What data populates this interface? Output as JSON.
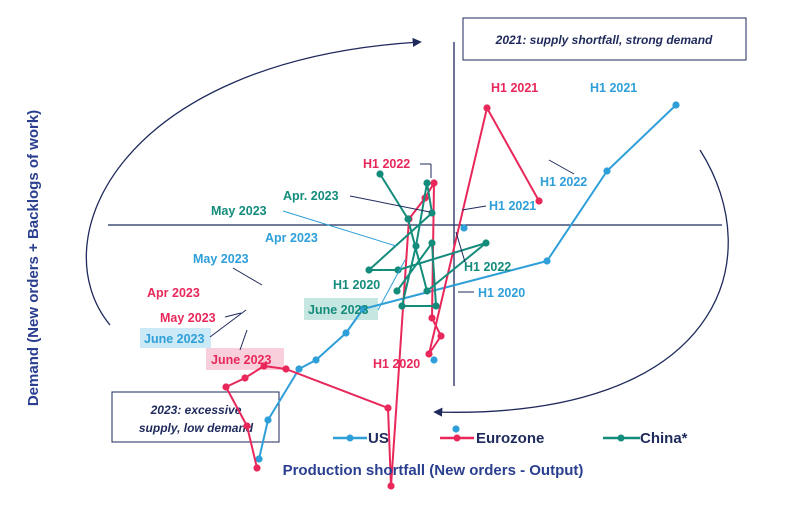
{
  "chart_data": {
    "type": "scatter",
    "xlabel": "Production shortfall (New orders - Output)",
    "ylabel": "Demand (New orders + Backlogs of work)",
    "quadrant_notes": {
      "top_right": "2021: supply shortfall, strong demand",
      "bottom_left_line1": "2023: excessive",
      "bottom_left_line2": "supply, low demand"
    },
    "legend_position": "bottom",
    "grid": false,
    "series": [
      {
        "name": "US",
        "color": "#2e9fd8",
        "points": [
          {
            "x": 222,
            "y": 0.4,
            "label": "H1 2021"
          },
          {
            "x": 153,
            "y": 0.18
          },
          {
            "x": 93,
            "y": -0.12,
            "label": "H1 2022"
          },
          {
            "x": -91,
            "y": -0.28,
            "label": "Apr 2023"
          },
          {
            "x": -108,
            "y": -0.36
          },
          {
            "x": -138,
            "y": -0.45
          },
          {
            "x": -155,
            "y": -0.48
          },
          {
            "x": -186,
            "y": -0.65,
            "label": "May 2023"
          },
          {
            "x": -195,
            "y": -0.78,
            "label": "June 2023"
          }
        ],
        "extra_points": [
          {
            "x": 10,
            "y": -0.01,
            "label": "H1 2021"
          },
          {
            "x": 2,
            "y": -0.68,
            "label": "H1 2020"
          },
          {
            "x": -20,
            "y": -0.45
          }
        ]
      },
      {
        "name": "Eurozone",
        "color": "#e8285a",
        "points": [
          {
            "x": 85,
            "y": 0.08
          },
          {
            "x": 33,
            "y": 0.39,
            "label": "H1 2021"
          },
          {
            "x": -25,
            "y": -0.43
          },
          {
            "x": -13,
            "y": -0.37
          },
          {
            "x": -22,
            "y": -0.31
          },
          {
            "x": -20,
            "y": 0.14,
            "label": "H1 2022"
          },
          {
            "x": -29,
            "y": 0.09
          },
          {
            "x": -45,
            "y": 0.02
          },
          {
            "x": -63,
            "y": -0.87,
            "label": "H1 2020"
          },
          {
            "x": -66,
            "y": -0.61
          },
          {
            "x": -168,
            "y": -0.48
          },
          {
            "x": -190,
            "y": -0.47
          },
          {
            "x": -209,
            "y": -0.51
          },
          {
            "x": -228,
            "y": -0.54,
            "label": "Apr 2023"
          },
          {
            "x": -207,
            "y": -0.67,
            "label": "May 2023"
          },
          {
            "x": -197,
            "y": -0.81,
            "label": "June 2023"
          }
        ]
      },
      {
        "name": "China*",
        "color": "#148c7c",
        "points": [
          {
            "x": -74,
            "y": 0.17
          },
          {
            "x": -46,
            "y": 0.02
          },
          {
            "x": -27,
            "y": -0.22
          },
          {
            "x": 32,
            "y": -0.06
          },
          {
            "x": -56,
            "y": -0.15
          },
          {
            "x": -85,
            "y": -0.15
          },
          {
            "x": -22,
            "y": 0.04
          },
          {
            "x": -27,
            "y": 0.14,
            "label": "Apr. 2023"
          },
          {
            "x": -38,
            "y": -0.07
          },
          {
            "x": -52,
            "y": -0.27,
            "label": "May 2023"
          },
          {
            "x": -18,
            "y": -0.27
          },
          {
            "x": -22,
            "y": -0.06
          },
          {
            "x": -57,
            "y": -0.22,
            "label": "June 2023"
          }
        ]
      }
    ],
    "annotations": {
      "us": [
        "H1 2021",
        "H1 2022",
        "H1 2021",
        "H1 2020",
        "Apr 2023",
        "May 2023",
        "June 2023"
      ],
      "eurozone": [
        "H1 2021",
        "H1 2022",
        "H1 2020",
        "Apr 2023",
        "May 2023",
        "June 2023"
      ],
      "china": [
        "Apr. 2023",
        "May 2023",
        "H1 2022",
        "H1 2020",
        "June 2023"
      ]
    }
  },
  "colors": {
    "us": "#2e9fd8",
    "eurozone": "#e8285a",
    "china": "#148c7c",
    "axis": "#1f2a5c",
    "us_highlight": "#cbe9f7",
    "eurozone_highlight": "#f9cfdb",
    "china_highlight": "#c6e6e1"
  }
}
